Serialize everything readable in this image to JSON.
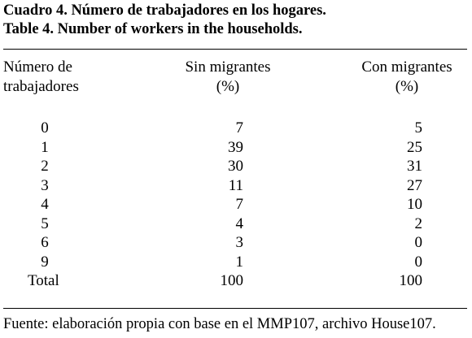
{
  "title": {
    "es": "Cuadro 4. Número de trabajadores en los hogares.",
    "en": "Table 4. Number of workers in the households."
  },
  "columns": {
    "c0": [
      "Número de",
      "trabajadores"
    ],
    "c1": [
      "Sin migrantes",
      "(%)"
    ],
    "c2": [
      "Con migrantes",
      "(%)"
    ]
  },
  "rows": [
    {
      "label": "0",
      "sin": "7",
      "con": "5"
    },
    {
      "label": "1",
      "sin": "39",
      "con": "25"
    },
    {
      "label": "2",
      "sin": "30",
      "con": "31"
    },
    {
      "label": "3",
      "sin": "11",
      "con": "27"
    },
    {
      "label": "4",
      "sin": "7",
      "con": "10"
    },
    {
      "label": "5",
      "sin": "4",
      "con": "2"
    },
    {
      "label": "6",
      "sin": "3",
      "con": "0"
    },
    {
      "label": "9",
      "sin": "1",
      "con": "0"
    },
    {
      "label": "Total",
      "sin": "100",
      "con": "100"
    }
  ],
  "source": "Fuente: elaboración propia con base en el MMP107, archivo House107."
}
